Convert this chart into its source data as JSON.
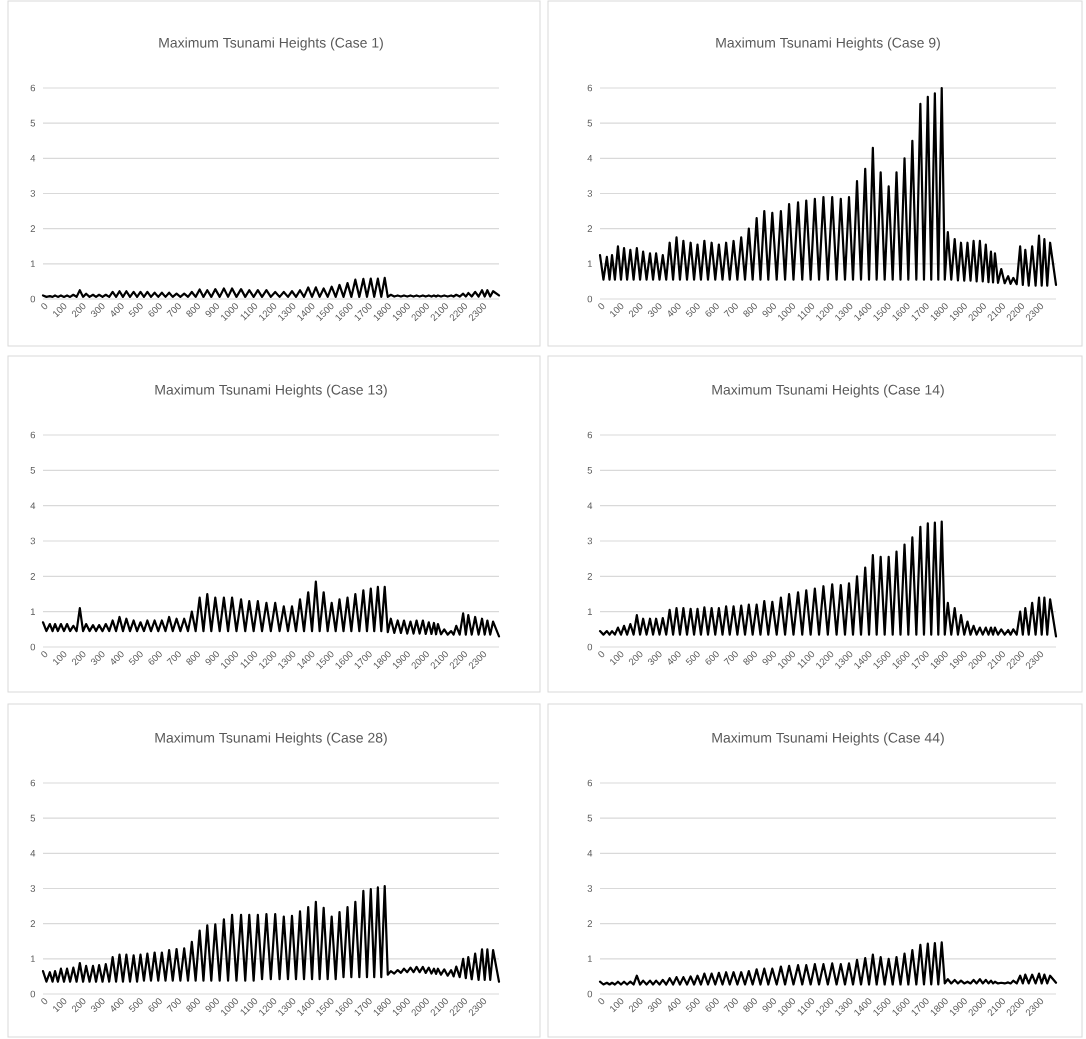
{
  "chart_data": [
    {
      "type": "line",
      "title": "Maximum Tsunami Heights (Case 1)",
      "color": "#000000",
      "grid": "y",
      "xlim": [
        0,
        2390
      ],
      "ylim": [
        0,
        6
      ],
      "xticks": [
        0,
        100,
        200,
        300,
        400,
        500,
        600,
        700,
        800,
        900,
        1000,
        1100,
        1200,
        1300,
        1400,
        1500,
        1600,
        1700,
        1800,
        1900,
        2000,
        2100,
        2200,
        2300
      ],
      "yticks": [
        0,
        1,
        2,
        3,
        4,
        5,
        6
      ],
      "x": [
        0,
        18,
        36,
        50,
        63,
        78,
        94,
        110,
        126,
        142,
        159,
        176,
        193,
        210,
        226,
        244,
        262,
        278,
        294,
        312,
        329,
        347,
        365,
        383,
        401,
        419,
        437,
        456,
        475,
        493,
        511,
        529,
        547,
        566,
        585,
        604,
        623,
        642,
        661,
        680,
        700,
        720,
        740,
        760,
        780,
        800,
        821,
        841,
        861,
        882,
        903,
        926,
        948,
        970,
        991,
        1014,
        1038,
        1060,
        1081,
        1104,
        1126,
        1148,
        1171,
        1194,
        1217,
        1240,
        1262,
        1284,
        1305,
        1326,
        1347,
        1368,
        1390,
        1410,
        1430,
        1450,
        1471,
        1492,
        1513,
        1534,
        1554,
        1575,
        1596,
        1616,
        1637,
        1658,
        1679,
        1698,
        1718,
        1736,
        1755,
        1773,
        1791,
        1807,
        1823,
        1841,
        1859,
        1876,
        1892,
        1909,
        1926,
        1942,
        1958,
        1974,
        1991,
        2006,
        2022,
        2036,
        2049,
        2060,
        2070,
        2086,
        2103,
        2121,
        2139,
        2152,
        2166,
        2184,
        2202,
        2216,
        2229,
        2247,
        2265,
        2283,
        2301,
        2315,
        2329,
        2344,
        2359,
        2390
      ],
      "values": [
        0.1,
        0.06,
        0.08,
        0.06,
        0.1,
        0.06,
        0.1,
        0.06,
        0.1,
        0.06,
        0.12,
        0.06,
        0.25,
        0.06,
        0.15,
        0.06,
        0.12,
        0.06,
        0.12,
        0.06,
        0.12,
        0.06,
        0.2,
        0.06,
        0.22,
        0.06,
        0.22,
        0.06,
        0.2,
        0.06,
        0.2,
        0.06,
        0.2,
        0.06,
        0.18,
        0.06,
        0.18,
        0.06,
        0.18,
        0.06,
        0.15,
        0.06,
        0.15,
        0.06,
        0.2,
        0.06,
        0.27,
        0.06,
        0.25,
        0.06,
        0.28,
        0.06,
        0.3,
        0.06,
        0.3,
        0.06,
        0.28,
        0.06,
        0.25,
        0.06,
        0.25,
        0.06,
        0.25,
        0.06,
        0.2,
        0.06,
        0.2,
        0.06,
        0.22,
        0.06,
        0.25,
        0.06,
        0.33,
        0.06,
        0.33,
        0.06,
        0.3,
        0.06,
        0.35,
        0.06,
        0.4,
        0.06,
        0.45,
        0.06,
        0.55,
        0.06,
        0.57,
        0.06,
        0.58,
        0.06,
        0.58,
        0.06,
        0.6,
        0.06,
        0.12,
        0.07,
        0.1,
        0.07,
        0.1,
        0.07,
        0.1,
        0.07,
        0.1,
        0.07,
        0.1,
        0.07,
        0.1,
        0.07,
        0.1,
        0.07,
        0.1,
        0.07,
        0.1,
        0.07,
        0.1,
        0.07,
        0.12,
        0.07,
        0.15,
        0.07,
        0.17,
        0.07,
        0.2,
        0.07,
        0.25,
        0.07,
        0.25,
        0.07,
        0.22,
        0.1
      ]
    },
    {
      "type": "line",
      "title": "Maximum Tsunami Heights (Case 9)",
      "color": "#000000",
      "grid": "y",
      "xlim": [
        0,
        2390
      ],
      "ylim": [
        0,
        6
      ],
      "xticks": [
        0,
        100,
        200,
        300,
        400,
        500,
        600,
        700,
        800,
        900,
        1000,
        1100,
        1200,
        1300,
        1400,
        1500,
        1600,
        1700,
        1800,
        1900,
        2000,
        2100,
        2200,
        2300
      ],
      "yticks": [
        0,
        1,
        2,
        3,
        4,
        5,
        6
      ],
      "x": [
        0,
        18,
        36,
        50,
        63,
        78,
        94,
        110,
        126,
        142,
        159,
        176,
        193,
        210,
        226,
        244,
        262,
        278,
        294,
        312,
        329,
        347,
        365,
        383,
        401,
        419,
        437,
        456,
        475,
        493,
        511,
        529,
        547,
        566,
        585,
        604,
        623,
        642,
        661,
        680,
        700,
        720,
        740,
        760,
        780,
        800,
        821,
        841,
        861,
        882,
        903,
        926,
        948,
        970,
        991,
        1014,
        1038,
        1060,
        1081,
        1104,
        1126,
        1148,
        1171,
        1194,
        1217,
        1240,
        1262,
        1284,
        1305,
        1326,
        1347,
        1368,
        1390,
        1410,
        1430,
        1450,
        1471,
        1492,
        1513,
        1534,
        1554,
        1575,
        1596,
        1616,
        1637,
        1658,
        1679,
        1698,
        1718,
        1736,
        1755,
        1773,
        1791,
        1807,
        1823,
        1841,
        1859,
        1876,
        1892,
        1909,
        1926,
        1942,
        1958,
        1974,
        1991,
        2006,
        2022,
        2036,
        2049,
        2060,
        2070,
        2086,
        2103,
        2121,
        2139,
        2152,
        2166,
        2184,
        2202,
        2216,
        2229,
        2247,
        2265,
        2283,
        2301,
        2315,
        2329,
        2344,
        2359,
        2390
      ],
      "values": [
        1.25,
        0.55,
        1.2,
        0.55,
        1.25,
        0.55,
        1.5,
        0.55,
        1.45,
        0.55,
        1.4,
        0.55,
        1.45,
        0.55,
        1.35,
        0.55,
        1.3,
        0.55,
        1.3,
        0.55,
        1.25,
        0.55,
        1.6,
        0.55,
        1.75,
        0.55,
        1.65,
        0.55,
        1.6,
        0.55,
        1.55,
        0.55,
        1.65,
        0.55,
        1.6,
        0.55,
        1.55,
        0.55,
        1.6,
        0.55,
        1.65,
        0.55,
        1.75,
        0.55,
        2.0,
        0.55,
        2.3,
        0.55,
        2.5,
        0.55,
        2.45,
        0.55,
        2.5,
        0.55,
        2.7,
        0.55,
        2.75,
        0.55,
        2.8,
        0.55,
        2.85,
        0.55,
        2.9,
        0.55,
        2.9,
        0.55,
        2.85,
        0.55,
        2.9,
        0.55,
        3.35,
        0.55,
        3.7,
        0.55,
        4.3,
        0.55,
        3.6,
        0.55,
        3.2,
        0.55,
        3.6,
        0.55,
        4.0,
        0.55,
        4.5,
        0.55,
        5.55,
        0.55,
        5.75,
        0.55,
        5.85,
        0.55,
        6.0,
        0.55,
        1.9,
        0.55,
        1.7,
        0.53,
        1.6,
        0.52,
        1.6,
        0.52,
        1.65,
        0.5,
        1.65,
        0.5,
        1.55,
        0.48,
        1.35,
        0.47,
        1.3,
        0.46,
        0.85,
        0.45,
        0.65,
        0.43,
        0.6,
        0.42,
        1.5,
        0.4,
        1.4,
        0.38,
        1.5,
        0.38,
        1.8,
        0.38,
        1.7,
        0.38,
        1.6,
        0.4
      ]
    },
    {
      "type": "line",
      "title": "Maximum Tsunami Heights (Case 13)",
      "color": "#000000",
      "grid": "y",
      "xlim": [
        0,
        2390
      ],
      "ylim": [
        0,
        6
      ],
      "xticks": [
        0,
        100,
        200,
        300,
        400,
        500,
        600,
        700,
        800,
        900,
        1000,
        1100,
        1200,
        1300,
        1400,
        1500,
        1600,
        1700,
        1800,
        1900,
        2000,
        2100,
        2200,
        2300
      ],
      "yticks": [
        0,
        1,
        2,
        3,
        4,
        5,
        6
      ],
      "x": [
        0,
        18,
        36,
        50,
        63,
        78,
        94,
        110,
        126,
        142,
        159,
        176,
        193,
        210,
        226,
        244,
        262,
        278,
        294,
        312,
        329,
        347,
        365,
        383,
        401,
        419,
        437,
        456,
        475,
        493,
        511,
        529,
        547,
        566,
        585,
        604,
        623,
        642,
        661,
        680,
        700,
        720,
        740,
        760,
        780,
        800,
        821,
        841,
        861,
        882,
        903,
        926,
        948,
        970,
        991,
        1014,
        1038,
        1060,
        1081,
        1104,
        1126,
        1148,
        1171,
        1194,
        1217,
        1240,
        1262,
        1284,
        1305,
        1326,
        1347,
        1368,
        1390,
        1410,
        1430,
        1450,
        1471,
        1492,
        1513,
        1534,
        1554,
        1575,
        1596,
        1616,
        1637,
        1658,
        1679,
        1698,
        1718,
        1736,
        1755,
        1773,
        1791,
        1807,
        1823,
        1841,
        1859,
        1876,
        1892,
        1909,
        1926,
        1942,
        1958,
        1974,
        1991,
        2006,
        2022,
        2036,
        2049,
        2060,
        2070,
        2086,
        2103,
        2121,
        2139,
        2152,
        2166,
        2184,
        2202,
        2216,
        2229,
        2247,
        2265,
        2283,
        2301,
        2315,
        2329,
        2344,
        2359,
        2390
      ],
      "values": [
        0.7,
        0.45,
        0.65,
        0.45,
        0.65,
        0.45,
        0.65,
        0.45,
        0.65,
        0.45,
        0.6,
        0.45,
        1.1,
        0.45,
        0.65,
        0.45,
        0.62,
        0.45,
        0.62,
        0.45,
        0.65,
        0.45,
        0.75,
        0.45,
        0.85,
        0.45,
        0.8,
        0.45,
        0.75,
        0.45,
        0.7,
        0.45,
        0.75,
        0.45,
        0.75,
        0.45,
        0.75,
        0.45,
        0.85,
        0.45,
        0.8,
        0.45,
        0.8,
        0.45,
        1.0,
        0.45,
        1.4,
        0.45,
        1.5,
        0.45,
        1.4,
        0.45,
        1.4,
        0.45,
        1.4,
        0.45,
        1.35,
        0.45,
        1.3,
        0.45,
        1.3,
        0.45,
        1.25,
        0.45,
        1.25,
        0.45,
        1.15,
        0.45,
        1.15,
        0.45,
        1.35,
        0.45,
        1.55,
        0.45,
        1.85,
        0.45,
        1.55,
        0.45,
        1.25,
        0.45,
        1.35,
        0.45,
        1.4,
        0.45,
        1.5,
        0.45,
        1.6,
        0.45,
        1.65,
        0.45,
        1.7,
        0.45,
        1.7,
        0.42,
        0.8,
        0.4,
        0.75,
        0.4,
        0.75,
        0.38,
        0.72,
        0.38,
        0.75,
        0.38,
        0.75,
        0.37,
        0.7,
        0.37,
        0.68,
        0.36,
        0.65,
        0.36,
        0.5,
        0.35,
        0.45,
        0.35,
        0.6,
        0.35,
        0.95,
        0.35,
        0.9,
        0.35,
        0.85,
        0.35,
        0.8,
        0.35,
        0.75,
        0.35,
        0.72,
        0.3
      ]
    },
    {
      "type": "line",
      "title": "Maximum Tsunami Heights (Case 14)",
      "color": "#000000",
      "grid": "y",
      "xlim": [
        0,
        2390
      ],
      "ylim": [
        0,
        6
      ],
      "xticks": [
        0,
        100,
        200,
        300,
        400,
        500,
        600,
        700,
        800,
        900,
        1000,
        1100,
        1200,
        1300,
        1400,
        1500,
        1600,
        1700,
        1800,
        1900,
        2000,
        2100,
        2200,
        2300
      ],
      "yticks": [
        0,
        1,
        2,
        3,
        4,
        5,
        6
      ],
      "x": [
        0,
        18,
        36,
        50,
        63,
        78,
        94,
        110,
        126,
        142,
        159,
        176,
        193,
        210,
        226,
        244,
        262,
        278,
        294,
        312,
        329,
        347,
        365,
        383,
        401,
        419,
        437,
        456,
        475,
        493,
        511,
        529,
        547,
        566,
        585,
        604,
        623,
        642,
        661,
        680,
        700,
        720,
        740,
        760,
        780,
        800,
        821,
        841,
        861,
        882,
        903,
        926,
        948,
        970,
        991,
        1014,
        1038,
        1060,
        1081,
        1104,
        1126,
        1148,
        1171,
        1194,
        1217,
        1240,
        1262,
        1284,
        1305,
        1326,
        1347,
        1368,
        1390,
        1410,
        1430,
        1450,
        1471,
        1492,
        1513,
        1534,
        1554,
        1575,
        1596,
        1616,
        1637,
        1658,
        1679,
        1698,
        1718,
        1736,
        1755,
        1773,
        1791,
        1807,
        1823,
        1841,
        1859,
        1876,
        1892,
        1909,
        1926,
        1942,
        1958,
        1974,
        1991,
        2006,
        2022,
        2036,
        2049,
        2060,
        2070,
        2086,
        2103,
        2121,
        2139,
        2152,
        2166,
        2184,
        2202,
        2216,
        2229,
        2247,
        2265,
        2283,
        2301,
        2315,
        2329,
        2344,
        2359,
        2390
      ],
      "values": [
        0.45,
        0.35,
        0.45,
        0.35,
        0.45,
        0.35,
        0.55,
        0.35,
        0.6,
        0.35,
        0.65,
        0.35,
        0.9,
        0.35,
        0.8,
        0.35,
        0.8,
        0.35,
        0.8,
        0.35,
        0.82,
        0.35,
        1.05,
        0.35,
        1.1,
        0.35,
        1.1,
        0.35,
        1.08,
        0.35,
        1.08,
        0.35,
        1.12,
        0.35,
        1.1,
        0.35,
        1.1,
        0.35,
        1.15,
        0.35,
        1.15,
        0.35,
        1.17,
        0.35,
        1.2,
        0.35,
        1.2,
        0.35,
        1.3,
        0.35,
        1.28,
        0.35,
        1.4,
        0.35,
        1.5,
        0.35,
        1.55,
        0.35,
        1.6,
        0.35,
        1.65,
        0.35,
        1.72,
        0.35,
        1.77,
        0.35,
        1.75,
        0.35,
        1.8,
        0.35,
        2.0,
        0.35,
        2.25,
        0.35,
        2.6,
        0.35,
        2.55,
        0.35,
        2.55,
        0.35,
        2.7,
        0.35,
        2.9,
        0.35,
        3.1,
        0.35,
        3.4,
        0.35,
        3.5,
        0.35,
        3.52,
        0.35,
        3.55,
        0.35,
        1.25,
        0.35,
        1.1,
        0.35,
        0.9,
        0.35,
        0.72,
        0.35,
        0.6,
        0.35,
        0.55,
        0.35,
        0.55,
        0.35,
        0.55,
        0.35,
        0.55,
        0.35,
        0.5,
        0.35,
        0.48,
        0.35,
        0.5,
        0.35,
        1.0,
        0.35,
        1.1,
        0.35,
        1.25,
        0.35,
        1.4,
        0.35,
        1.4,
        0.35,
        1.35,
        0.3
      ]
    },
    {
      "type": "line",
      "title": "Maximum Tsunami Heights (Case 28)",
      "color": "#000000",
      "grid": "y",
      "xlim": [
        0,
        2390
      ],
      "ylim": [
        0,
        6
      ],
      "xticks": [
        0,
        100,
        200,
        300,
        400,
        500,
        600,
        700,
        800,
        900,
        1000,
        1100,
        1200,
        1300,
        1400,
        1500,
        1600,
        1700,
        1800,
        1900,
        2000,
        2100,
        2200,
        2300
      ],
      "yticks": [
        0,
        1,
        2,
        3,
        4,
        5,
        6
      ],
      "x": [
        0,
        18,
        36,
        50,
        63,
        78,
        94,
        110,
        126,
        142,
        159,
        176,
        193,
        210,
        226,
        244,
        262,
        278,
        294,
        312,
        329,
        347,
        365,
        383,
        401,
        419,
        437,
        456,
        475,
        493,
        511,
        529,
        547,
        566,
        585,
        604,
        623,
        642,
        661,
        680,
        700,
        720,
        740,
        760,
        780,
        800,
        821,
        841,
        861,
        882,
        903,
        926,
        948,
        970,
        991,
        1014,
        1038,
        1060,
        1081,
        1104,
        1126,
        1148,
        1171,
        1194,
        1217,
        1240,
        1262,
        1284,
        1305,
        1326,
        1347,
        1368,
        1390,
        1410,
        1430,
        1450,
        1471,
        1492,
        1513,
        1534,
        1554,
        1575,
        1596,
        1616,
        1637,
        1658,
        1679,
        1698,
        1718,
        1736,
        1755,
        1773,
        1791,
        1807,
        1823,
        1841,
        1859,
        1876,
        1892,
        1909,
        1926,
        1942,
        1958,
        1974,
        1991,
        2006,
        2022,
        2036,
        2049,
        2060,
        2070,
        2086,
        2103,
        2121,
        2139,
        2152,
        2166,
        2184,
        2202,
        2216,
        2229,
        2247,
        2265,
        2283,
        2301,
        2315,
        2329,
        2344,
        2359,
        2390
      ],
      "values": [
        0.65,
        0.35,
        0.62,
        0.35,
        0.65,
        0.35,
        0.72,
        0.35,
        0.72,
        0.35,
        0.75,
        0.35,
        0.88,
        0.35,
        0.8,
        0.35,
        0.8,
        0.35,
        0.82,
        0.35,
        0.85,
        0.35,
        1.05,
        0.35,
        1.12,
        0.35,
        1.12,
        0.35,
        1.1,
        0.35,
        1.12,
        0.38,
        1.15,
        0.38,
        1.18,
        0.38,
        1.18,
        0.38,
        1.25,
        0.38,
        1.28,
        0.38,
        1.3,
        0.38,
        1.48,
        0.38,
        1.8,
        0.38,
        1.95,
        0.38,
        1.98,
        0.38,
        2.12,
        0.38,
        2.25,
        0.38,
        2.25,
        0.38,
        2.25,
        0.38,
        2.25,
        0.42,
        2.27,
        0.42,
        2.27,
        0.42,
        2.2,
        0.42,
        2.22,
        0.42,
        2.35,
        0.42,
        2.47,
        0.42,
        2.62,
        0.42,
        2.45,
        0.42,
        2.2,
        0.42,
        2.33,
        0.48,
        2.47,
        0.48,
        2.62,
        0.48,
        2.93,
        0.48,
        2.98,
        0.48,
        3.03,
        0.48,
        3.07,
        0.55,
        0.65,
        0.58,
        0.68,
        0.6,
        0.72,
        0.62,
        0.75,
        0.62,
        0.77,
        0.62,
        0.77,
        0.6,
        0.75,
        0.58,
        0.72,
        0.57,
        0.72,
        0.55,
        0.7,
        0.52,
        0.68,
        0.5,
        0.78,
        0.48,
        1.0,
        0.45,
        1.05,
        0.42,
        1.15,
        0.4,
        1.27,
        0.4,
        1.27,
        0.4,
        1.25,
        0.35
      ]
    },
    {
      "type": "line",
      "title": "Maximum Tsunami Heights (Case 44)",
      "color": "#000000",
      "grid": "y",
      "xlim": [
        0,
        2390
      ],
      "ylim": [
        0,
        6
      ],
      "xticks": [
        0,
        100,
        200,
        300,
        400,
        500,
        600,
        700,
        800,
        900,
        1000,
        1100,
        1200,
        1300,
        1400,
        1500,
        1600,
        1700,
        1800,
        1900,
        2000,
        2100,
        2200,
        2300
      ],
      "yticks": [
        0,
        1,
        2,
        3,
        4,
        5,
        6
      ],
      "x": [
        0,
        18,
        36,
        50,
        63,
        78,
        94,
        110,
        126,
        142,
        159,
        176,
        193,
        210,
        226,
        244,
        262,
        278,
        294,
        312,
        329,
        347,
        365,
        383,
        401,
        419,
        437,
        456,
        475,
        493,
        511,
        529,
        547,
        566,
        585,
        604,
        623,
        642,
        661,
        680,
        700,
        720,
        740,
        760,
        780,
        800,
        821,
        841,
        861,
        882,
        903,
        926,
        948,
        970,
        991,
        1014,
        1038,
        1060,
        1081,
        1104,
        1126,
        1148,
        1171,
        1194,
        1217,
        1240,
        1262,
        1284,
        1305,
        1326,
        1347,
        1368,
        1390,
        1410,
        1430,
        1450,
        1471,
        1492,
        1513,
        1534,
        1554,
        1575,
        1596,
        1616,
        1637,
        1658,
        1679,
        1698,
        1718,
        1736,
        1755,
        1773,
        1791,
        1807,
        1823,
        1841,
        1859,
        1876,
        1892,
        1909,
        1926,
        1942,
        1958,
        1974,
        1991,
        2006,
        2022,
        2036,
        2049,
        2060,
        2070,
        2086,
        2103,
        2121,
        2139,
        2152,
        2166,
        2184,
        2202,
        2216,
        2229,
        2247,
        2265,
        2283,
        2301,
        2315,
        2329,
        2344,
        2359,
        2390
      ],
      "values": [
        0.35,
        0.27,
        0.32,
        0.27,
        0.32,
        0.27,
        0.35,
        0.27,
        0.35,
        0.27,
        0.35,
        0.27,
        0.52,
        0.27,
        0.38,
        0.27,
        0.38,
        0.27,
        0.38,
        0.27,
        0.4,
        0.27,
        0.45,
        0.27,
        0.48,
        0.27,
        0.48,
        0.27,
        0.5,
        0.27,
        0.52,
        0.27,
        0.58,
        0.27,
        0.58,
        0.27,
        0.6,
        0.27,
        0.62,
        0.27,
        0.62,
        0.27,
        0.62,
        0.27,
        0.65,
        0.27,
        0.7,
        0.27,
        0.72,
        0.27,
        0.72,
        0.27,
        0.78,
        0.27,
        0.8,
        0.27,
        0.82,
        0.27,
        0.82,
        0.27,
        0.85,
        0.27,
        0.85,
        0.27,
        0.87,
        0.27,
        0.85,
        0.27,
        0.87,
        0.27,
        0.97,
        0.27,
        1.02,
        0.27,
        1.12,
        0.27,
        1.05,
        0.27,
        1.0,
        0.27,
        1.05,
        0.27,
        1.15,
        0.27,
        1.25,
        0.27,
        1.4,
        0.27,
        1.43,
        0.27,
        1.45,
        0.27,
        1.47,
        0.3,
        0.42,
        0.3,
        0.4,
        0.3,
        0.38,
        0.3,
        0.35,
        0.3,
        0.4,
        0.3,
        0.42,
        0.3,
        0.4,
        0.3,
        0.38,
        0.3,
        0.35,
        0.3,
        0.32,
        0.3,
        0.33,
        0.3,
        0.38,
        0.3,
        0.52,
        0.3,
        0.55,
        0.3,
        0.55,
        0.3,
        0.58,
        0.3,
        0.55,
        0.3,
        0.52,
        0.32
      ]
    }
  ]
}
